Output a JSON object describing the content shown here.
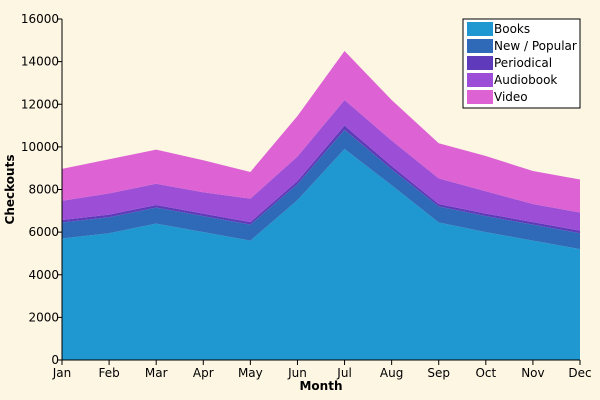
{
  "chart_data": {
    "type": "area",
    "stacked": true,
    "categories": [
      "Jan",
      "Feb",
      "Mar",
      "Apr",
      "May",
      "Jun",
      "Jul",
      "Aug",
      "Sep",
      "Oct",
      "Nov",
      "Dec"
    ],
    "series": [
      {
        "name": "Books",
        "color": "#1f97d0",
        "values": [
          5700,
          5950,
          6400,
          6000,
          5600,
          7500,
          9900,
          8200,
          6450,
          6000,
          5600,
          5200
        ]
      },
      {
        "name": "New / Popular",
        "color": "#2f6ab8",
        "values": [
          750,
          750,
          750,
          750,
          750,
          750,
          900,
          750,
          750,
          750,
          750,
          750
        ]
      },
      {
        "name": "Periodical",
        "color": "#5f3bbb",
        "values": [
          120,
          120,
          120,
          120,
          120,
          150,
          200,
          150,
          120,
          120,
          120,
          120
        ]
      },
      {
        "name": "Audiobook",
        "color": "#9c4fd6",
        "values": [
          900,
          1000,
          1000,
          1000,
          1100,
          1150,
          1200,
          1200,
          1200,
          1050,
          850,
          850
        ]
      },
      {
        "name": "Video",
        "color": "#dd62d3",
        "values": [
          1500,
          1600,
          1600,
          1500,
          1250,
          1900,
          2300,
          1900,
          1650,
          1650,
          1550,
          1550
        ]
      }
    ],
    "title": "",
    "xlabel": "Month",
    "ylabel": "Checkouts",
    "ylim": [
      0,
      16000
    ],
    "yticks": [
      0,
      2000,
      4000,
      6000,
      8000,
      10000,
      12000,
      14000,
      16000
    ],
    "grid": false,
    "legend": "top-right"
  }
}
